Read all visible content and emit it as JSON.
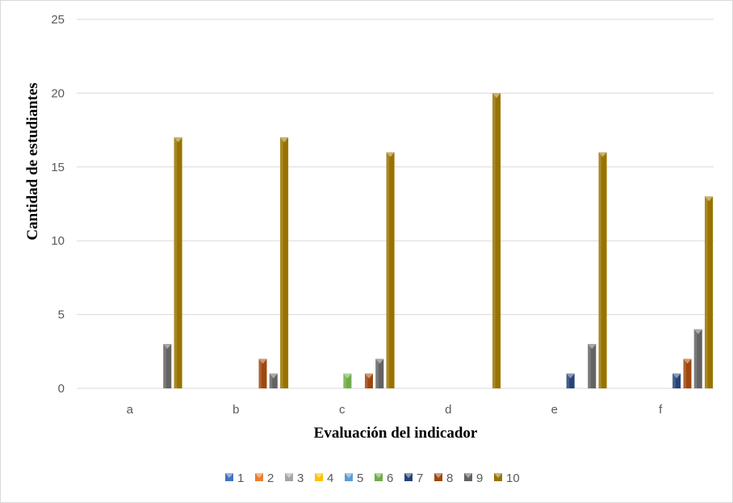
{
  "chart_data": {
    "type": "bar",
    "title": "",
    "xlabel": "Evaluación del indicador",
    "ylabel": "Cantidad de estudiantes",
    "ylim": [
      0,
      25
    ],
    "yticks": [
      0,
      5,
      10,
      15,
      20,
      25
    ],
    "grid": true,
    "legend_position": "bottom",
    "categories": [
      "a",
      "b",
      "c",
      "d",
      "e",
      "f"
    ],
    "series": [
      {
        "name": "1",
        "color": "#4472c4",
        "values": [
          0,
          0,
          0,
          0,
          0,
          0
        ]
      },
      {
        "name": "2",
        "color": "#ed7d31",
        "values": [
          0,
          0,
          0,
          0,
          0,
          0
        ]
      },
      {
        "name": "3",
        "color": "#a5a5a5",
        "values": [
          0,
          0,
          0,
          0,
          0,
          0
        ]
      },
      {
        "name": "4",
        "color": "#ffc000",
        "values": [
          0,
          0,
          0,
          0,
          0,
          0
        ]
      },
      {
        "name": "5",
        "color": "#5b9bd5",
        "values": [
          0,
          0,
          0,
          0,
          0,
          0
        ]
      },
      {
        "name": "6",
        "color": "#70ad47",
        "values": [
          0,
          0,
          1,
          0,
          0,
          0
        ]
      },
      {
        "name": "7",
        "color": "#264478",
        "values": [
          0,
          0,
          0,
          0,
          1,
          1
        ]
      },
      {
        "name": "8",
        "color": "#9e480e",
        "values": [
          0,
          2,
          1,
          0,
          0,
          2
        ]
      },
      {
        "name": "9",
        "color": "#636363",
        "values": [
          3,
          1,
          2,
          0,
          3,
          4
        ]
      },
      {
        "name": "10",
        "color": "#997300",
        "values": [
          17,
          17,
          16,
          20,
          16,
          13
        ]
      }
    ]
  }
}
